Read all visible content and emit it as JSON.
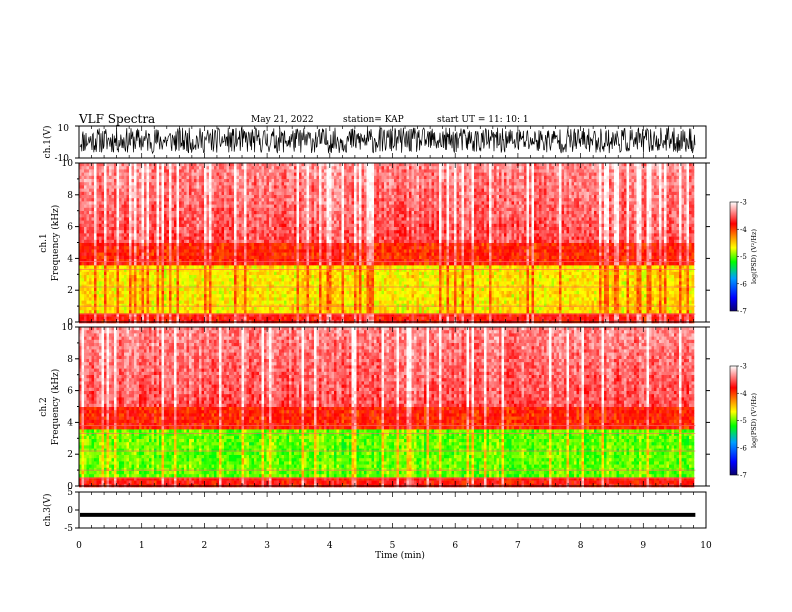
{
  "header": {
    "title": "VLF Spectra",
    "date": "May 21, 2022",
    "station": "station= KAP",
    "start": "start  UT =   11: 10: 1"
  },
  "chart_data": [
    {
      "type": "line",
      "panel": "ch1-waveform",
      "ylabel": "ch.1(V)",
      "ylim": [
        -10,
        10
      ],
      "ytick_labels": [
        "-10",
        "10"
      ],
      "xlim": [
        0,
        10
      ],
      "x_data_end": 9.83,
      "signal": "dense noise, mostly between about -7 and +9 V"
    },
    {
      "type": "heatmap",
      "panel": "ch1-spectrogram",
      "ylabel": "Frequency (kHz)",
      "ylabel_prefix": "ch.1",
      "ylim": [
        0,
        10
      ],
      "ytick_labels": [
        "0",
        "2",
        "4",
        "6",
        "8",
        "10"
      ],
      "xlim": [
        0,
        10
      ],
      "x_data_end": 9.83,
      "colorbar": {
        "label": "log(PSD) (V²/Hz)",
        "range": [
          -7,
          -3
        ],
        "tick_labels": [
          "-7",
          "-6",
          "-5",
          "-4",
          "-3"
        ],
        "colors": [
          "#0a006e",
          "#0000ff",
          "#00a0ff",
          "#00ff00",
          "#ffff00",
          "#ff9000",
          "#ff0000",
          "#ffffff"
        ]
      }
    },
    {
      "type": "heatmap",
      "panel": "ch2-spectrogram",
      "ylabel": "Frequency (kHz)",
      "ylabel_prefix": "ch.2",
      "ylim": [
        0,
        10
      ],
      "ytick_labels": [
        "0",
        "2",
        "4",
        "6",
        "8",
        "10"
      ],
      "xlim": [
        0,
        10
      ],
      "x_data_end": 9.83,
      "colorbar": {
        "label": "log(PSD) (V²/Hz)",
        "range": [
          -7,
          -3
        ],
        "tick_labels": [
          "-7",
          "-6",
          "-5",
          "-4",
          "-3"
        ],
        "colors": [
          "#0a006e",
          "#0000ff",
          "#00a0ff",
          "#00ff00",
          "#ffff00",
          "#ff9000",
          "#ff0000",
          "#ffffff"
        ]
      }
    },
    {
      "type": "line",
      "panel": "ch3-waveform",
      "ylabel": "ch.3(V)",
      "ylim": [
        -5,
        5
      ],
      "ytick_labels": [
        "-5",
        "0",
        "5"
      ],
      "xlim": [
        0,
        10
      ],
      "x_data_end": 9.83,
      "signal": "narrow band centered near -1.3 V"
    }
  ],
  "xaxis": {
    "label": "Time (min)",
    "tick_labels": [
      "0",
      "1",
      "2",
      "3",
      "4",
      "5",
      "6",
      "7",
      "8",
      "9",
      "10"
    ]
  }
}
